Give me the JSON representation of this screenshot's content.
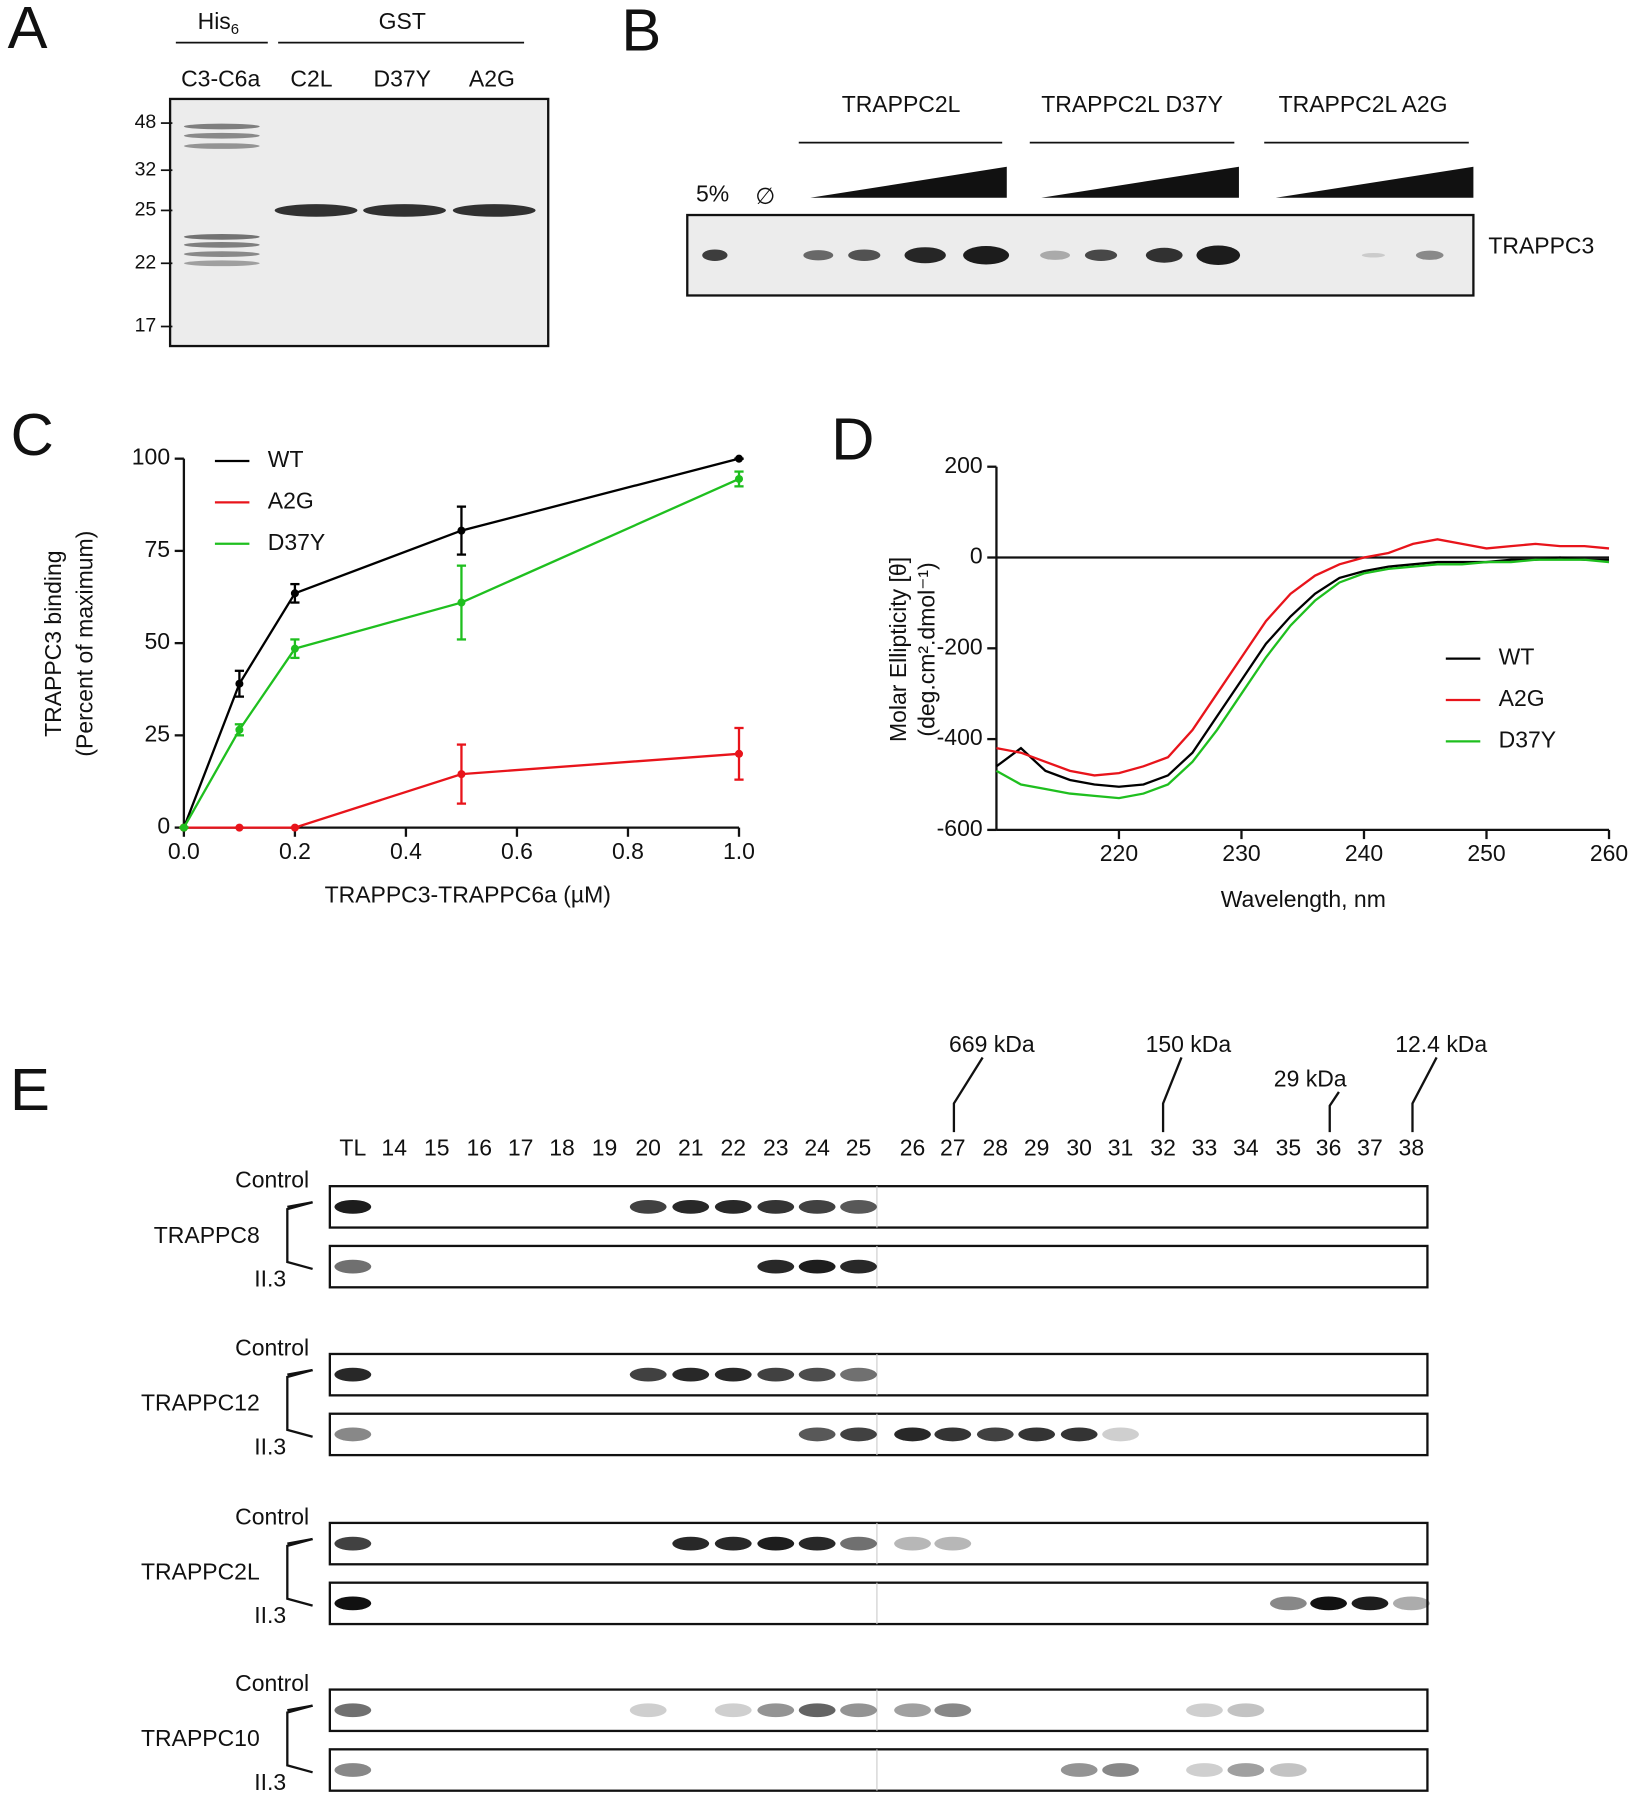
{
  "panels": {
    "A": {
      "letter": "A",
      "his": "His",
      "his_sub": "6",
      "gst": "GST",
      "lanes": [
        "C3-C6a",
        "C2L",
        "D37Y",
        "A2G"
      ],
      "markers": [
        "48",
        "32",
        "25",
        "22",
        "17"
      ]
    },
    "B": {
      "letter": "B",
      "input": "5%",
      "empty": "∅",
      "groups": [
        "TRAPPC2L",
        "TRAPPC2L D37Y",
        "TRAPPC2L A2G"
      ],
      "blot": "TRAPPC3"
    },
    "C": {
      "letter": "C"
    },
    "D": {
      "letter": "D"
    },
    "E": {
      "letter": "E",
      "sizes": [
        "669 kDa",
        "150 kDa",
        "29 kDa",
        "12.4 kDa"
      ],
      "fractions": [
        "TL",
        "14",
        "15",
        "16",
        "17",
        "18",
        "19",
        "20",
        "21",
        "22",
        "23",
        "24",
        "25",
        "26",
        "27",
        "28",
        "29",
        "30",
        "31",
        "32",
        "33",
        "34",
        "35",
        "36",
        "37",
        "38"
      ],
      "highlight_color": "#e8141b",
      "blots": [
        {
          "protein": "TRAPPC8",
          "control": "Control",
          "mutant": "II.3"
        },
        {
          "protein": "TRAPPC12",
          "control": "Control",
          "mutant": "II.3"
        },
        {
          "protein": "TRAPPC2L",
          "control": "Control",
          "mutant": "II.3"
        },
        {
          "protein": "TRAPPC10",
          "control": "Control",
          "mutant": "II.3"
        }
      ]
    }
  },
  "chart_data": [
    {
      "type": "line",
      "xlabel": "TRAPPC3-TRAPPC6a (µM)",
      "ylabel": [
        "TRAPPC3 binding",
        "(Percent of maximum)"
      ],
      "x": [
        0,
        0.1,
        0.2,
        0.5,
        1.0
      ],
      "series": [
        {
          "name": "WT",
          "color": "#000000",
          "values": [
            0,
            39,
            63.5,
            80.5,
            100
          ],
          "errors": [
            0,
            3.5,
            2.5,
            6.5,
            0
          ]
        },
        {
          "name": "A2G",
          "color": "#e8141b",
          "values": [
            0,
            0,
            0,
            14.5,
            20
          ],
          "errors": [
            0,
            0,
            0,
            8,
            7
          ]
        },
        {
          "name": "D37Y",
          "color": "#1fbf1f",
          "values": [
            0,
            26.5,
            48.5,
            61,
            94.5
          ],
          "errors": [
            0,
            1.5,
            2.5,
            10,
            2
          ]
        }
      ],
      "xlim": [
        0,
        1
      ],
      "xticks": [
        {
          "value": 0,
          "label": "0.0"
        },
        0.2,
        0.4,
        0.6,
        0.8,
        {
          "value": 1,
          "label": "1.0"
        }
      ],
      "ylim": [
        0,
        100
      ],
      "yticks": [
        0,
        25,
        50,
        75,
        100
      ],
      "legend": "upper left",
      "markers": true
    },
    {
      "type": "line",
      "xlabel": "Wavelength, nm",
      "ylabel": [
        "Molar Ellipticity [θ]",
        "(deg.cm².dmol⁻¹)"
      ],
      "x": [
        210,
        212,
        214,
        216,
        218,
        220,
        222,
        224,
        226,
        228,
        230,
        232,
        234,
        236,
        238,
        240,
        242,
        244,
        246,
        248,
        250,
        252,
        254,
        256,
        258,
        260
      ],
      "series": [
        {
          "name": "WT",
          "color": "#000000",
          "values": [
            -460,
            -420,
            -470,
            -490,
            -500,
            -505,
            -500,
            -480,
            -430,
            -350,
            -270,
            -190,
            -130,
            -80,
            -45,
            -30,
            -20,
            -15,
            -10,
            -10,
            -10,
            -5,
            -5,
            0,
            -5,
            -5
          ]
        },
        {
          "name": "A2G",
          "color": "#e8141b",
          "values": [
            -420,
            -430,
            -450,
            -470,
            -480,
            -475,
            -460,
            -440,
            -380,
            -300,
            -220,
            -140,
            -80,
            -40,
            -15,
            0,
            10,
            30,
            40,
            30,
            20,
            25,
            30,
            25,
            25,
            20
          ]
        },
        {
          "name": "D37Y",
          "color": "#1fbf1f",
          "values": [
            -470,
            -500,
            -510,
            -520,
            -525,
            -530,
            -520,
            -500,
            -450,
            -380,
            -300,
            -220,
            -150,
            -95,
            -55,
            -35,
            -25,
            -20,
            -15,
            -15,
            -10,
            -10,
            -5,
            -5,
            -5,
            -10
          ]
        }
      ],
      "xlim": [
        210,
        260
      ],
      "xticks": [
        220,
        230,
        240,
        250,
        260
      ],
      "ylim": [
        -600,
        200
      ],
      "yticks": [
        -600,
        -400,
        -200,
        0,
        200
      ],
      "legend": "center right",
      "zero_line": true,
      "markers": false
    }
  ]
}
